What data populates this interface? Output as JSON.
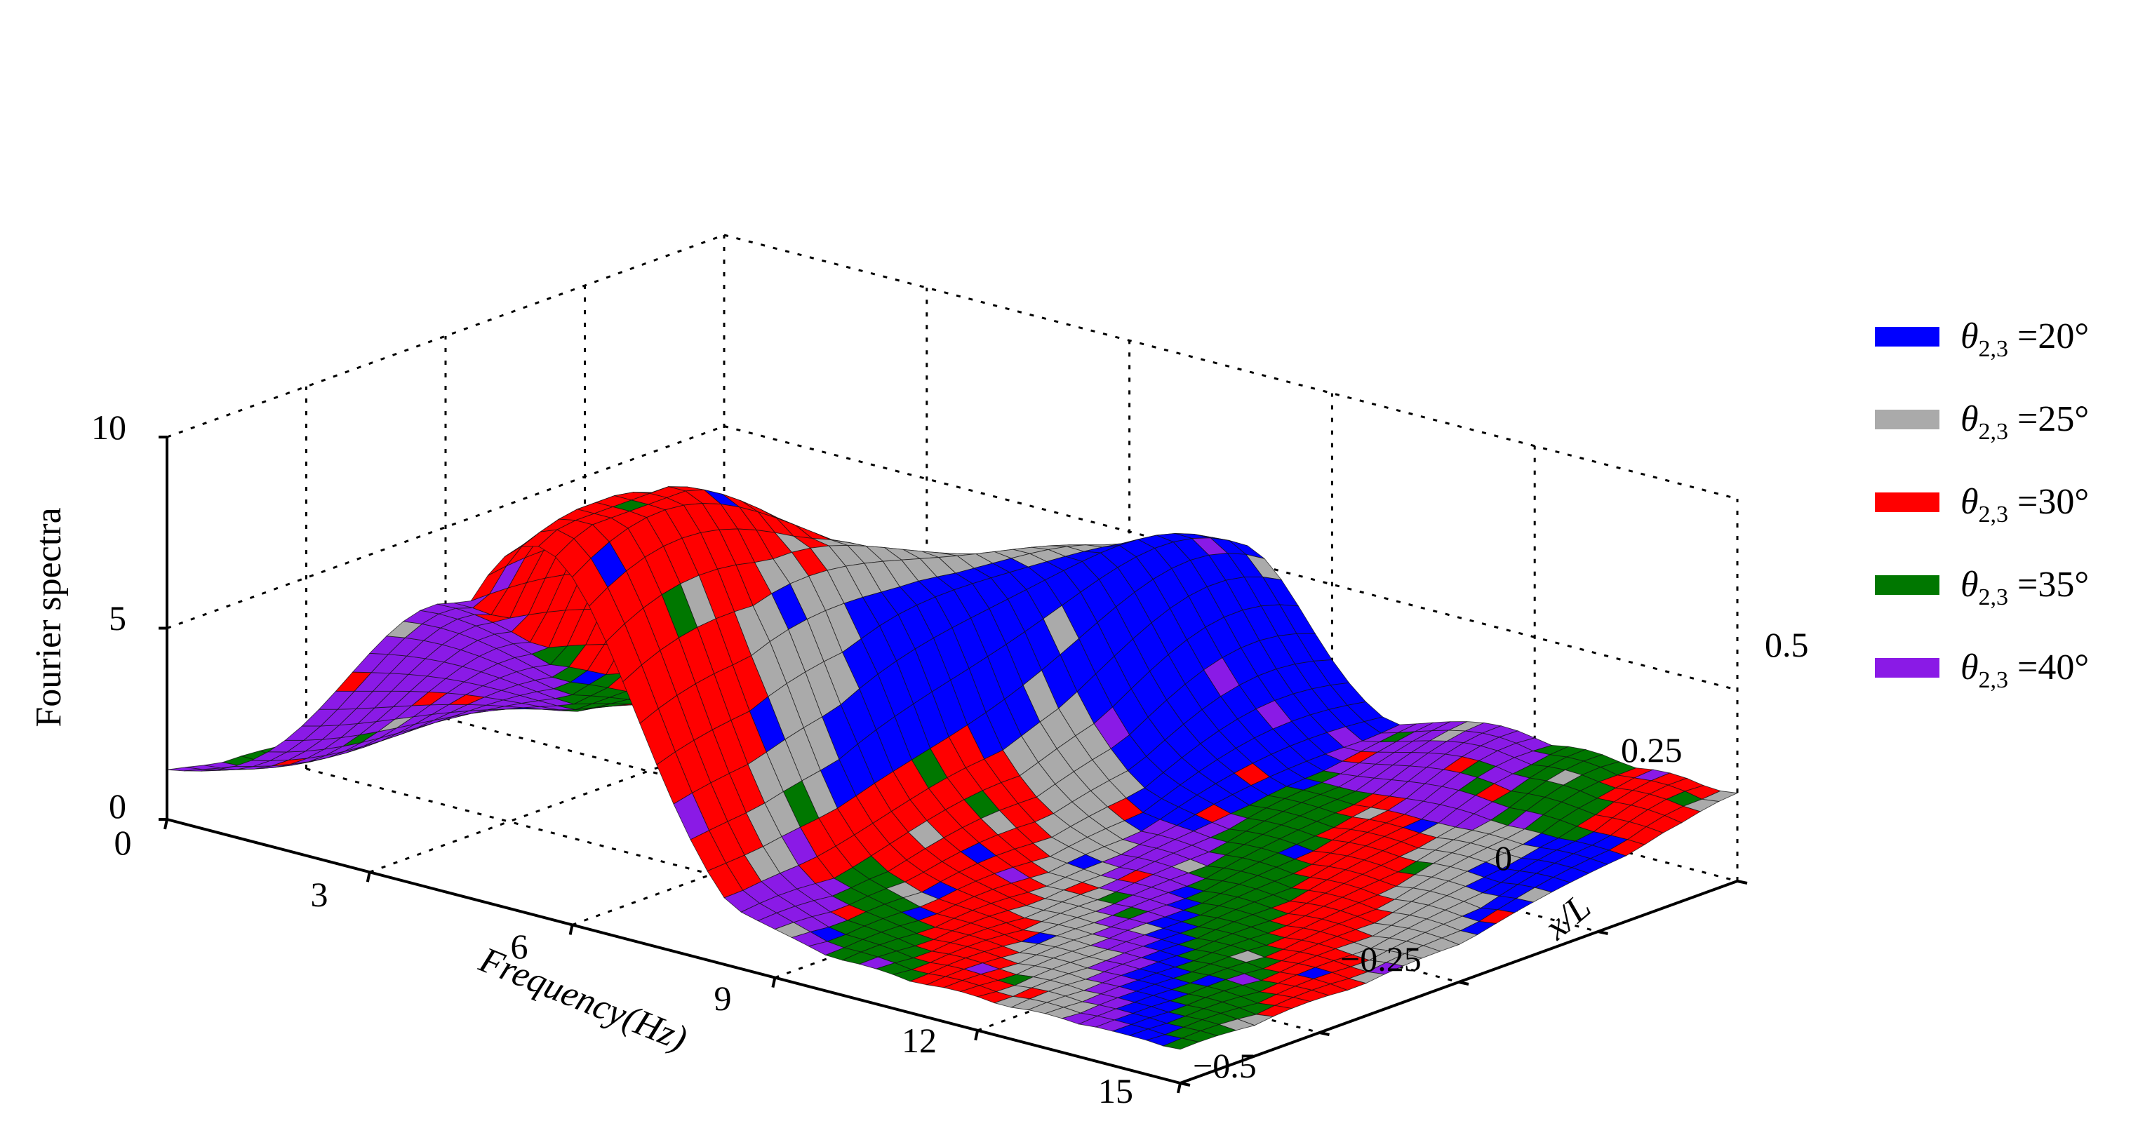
{
  "chart_data": {
    "type": "surface",
    "title": "",
    "xlabel": "Frequency(Hz)",
    "ylabel": "x/L",
    "zlabel": "Fourier spectra",
    "xlim": [
      0,
      15
    ],
    "ylim": [
      -0.5,
      0.5
    ],
    "zlim": [
      0,
      10
    ],
    "x_ticks": [
      "0",
      "3",
      "6",
      "9",
      "12",
      "15"
    ],
    "y_ticks": [
      "−0.5",
      "−0.25",
      "0",
      "0.25",
      "0.5"
    ],
    "z_ticks": [
      "0",
      "5",
      "10"
    ],
    "grid": true,
    "legend_position": "right",
    "series": [
      {
        "name_symbol": "θ",
        "name_subscript": "2,3",
        "name_value": " =20°",
        "color": "#0000ff",
        "peak_freq": 7.0,
        "peak": 6.0
      },
      {
        "name_symbol": "θ",
        "name_subscript": "2,3",
        "name_value": " =25°",
        "color": "#aaaaaa",
        "peak_freq": 6.5,
        "peak": 7.5
      },
      {
        "name_symbol": "θ",
        "name_subscript": "2,3",
        "name_value": " =30°",
        "color": "#ff0000",
        "peak_freq": 6.0,
        "peak": 9.5
      },
      {
        "name_symbol": "θ",
        "name_subscript": "2,3",
        "name_value": " =35°",
        "color": "#007700",
        "peak_freq": 5.5,
        "peak": 6.5
      },
      {
        "name_symbol": "θ",
        "name_subscript": "2,3",
        "name_value": " =40°",
        "color": "#8a1ae6",
        "peak_freq": 5.0,
        "peak": 7.8
      }
    ]
  }
}
